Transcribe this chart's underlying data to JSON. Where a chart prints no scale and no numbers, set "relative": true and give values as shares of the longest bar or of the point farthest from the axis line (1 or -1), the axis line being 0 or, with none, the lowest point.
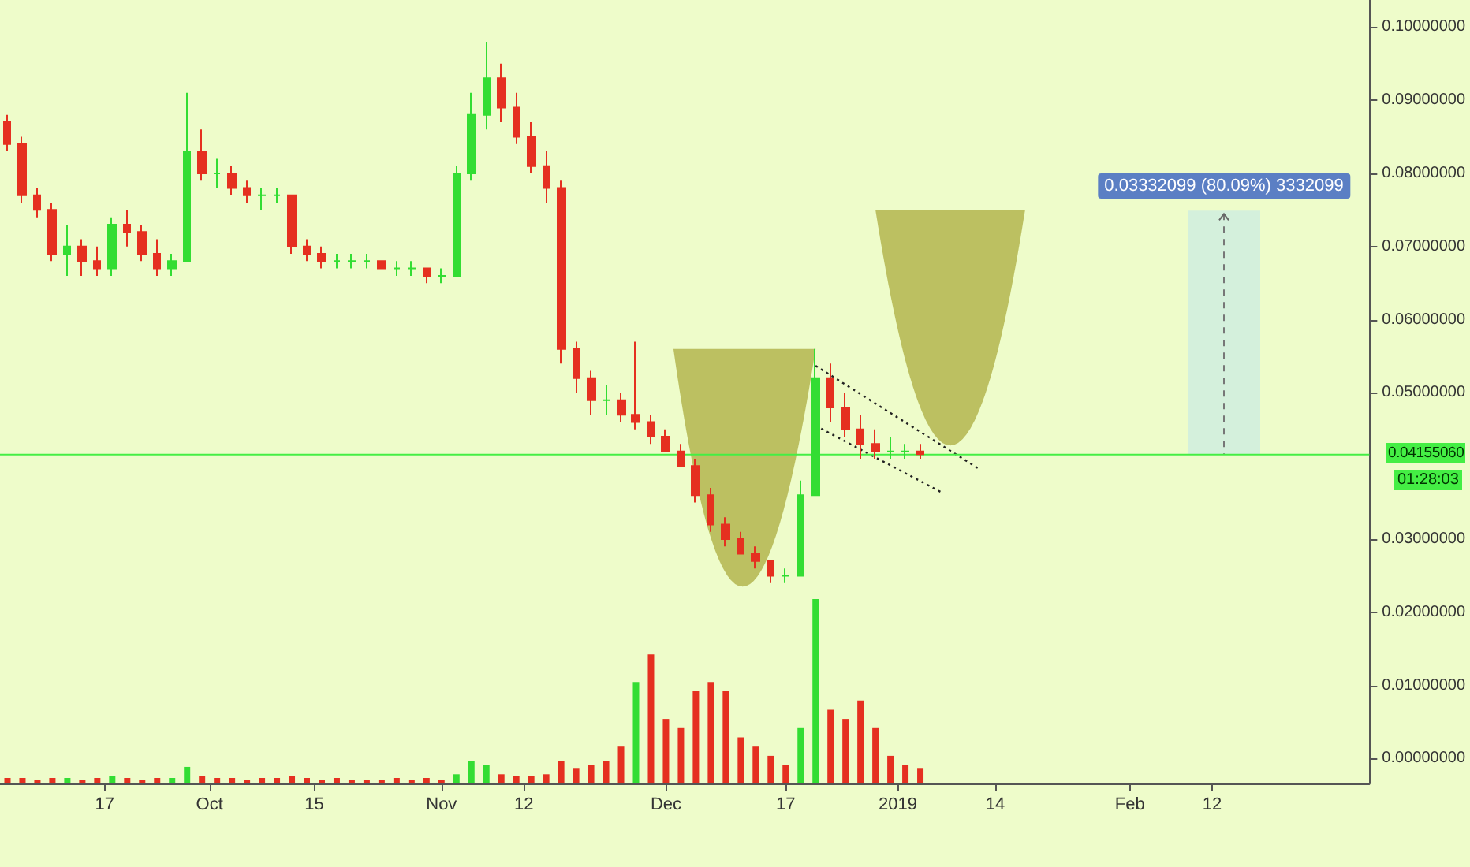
{
  "chart_data": [
    {
      "type": "candlestick",
      "x": [
        "2018-09-04",
        "2018-09-06",
        "2018-09-08",
        "2018-09-10",
        "2018-09-12",
        "2018-09-14",
        "2018-09-16",
        "2018-09-18",
        "2018-09-20",
        "2018-09-22",
        "2018-09-24",
        "2018-09-26",
        "2018-09-28",
        "2018-09-30",
        "2018-10-02",
        "2018-10-04",
        "2018-10-06",
        "2018-10-08",
        "2018-10-10",
        "2018-10-12",
        "2018-10-14",
        "2018-10-16",
        "2018-10-18",
        "2018-10-20",
        "2018-10-22",
        "2018-10-24",
        "2018-10-26",
        "2018-10-28",
        "2018-10-30",
        "2018-11-01",
        "2018-11-03",
        "2018-11-05",
        "2018-11-07",
        "2018-11-09",
        "2018-11-11",
        "2018-11-13",
        "2018-11-15",
        "2018-11-17",
        "2018-11-19",
        "2018-11-21",
        "2018-11-23",
        "2018-11-25",
        "2018-11-27",
        "2018-11-29",
        "2018-12-01",
        "2018-12-03",
        "2018-12-05",
        "2018-12-07",
        "2018-12-09",
        "2018-12-11",
        "2018-12-13",
        "2018-12-15",
        "2018-12-17",
        "2018-12-19",
        "2018-12-21",
        "2018-12-23",
        "2018-12-25",
        "2018-12-27",
        "2018-12-29",
        "2018-12-31",
        "2019-01-02",
        "2019-01-04"
      ],
      "ohlc": [
        [
          0.087,
          0.088,
          0.083,
          0.084
        ],
        [
          0.084,
          0.085,
          0.076,
          0.077
        ],
        [
          0.077,
          0.078,
          0.074,
          0.075
        ],
        [
          0.075,
          0.076,
          0.068,
          0.069
        ],
        [
          0.069,
          0.073,
          0.066,
          0.07
        ],
        [
          0.07,
          0.071,
          0.066,
          0.068
        ],
        [
          0.068,
          0.07,
          0.066,
          0.067
        ],
        [
          0.067,
          0.074,
          0.066,
          0.073
        ],
        [
          0.073,
          0.075,
          0.07,
          0.072
        ],
        [
          0.072,
          0.073,
          0.068,
          0.069
        ],
        [
          0.069,
          0.071,
          0.066,
          0.067
        ],
        [
          0.067,
          0.069,
          0.066,
          0.068
        ],
        [
          0.068,
          0.091,
          0.068,
          0.083
        ],
        [
          0.083,
          0.086,
          0.079,
          0.08
        ],
        [
          0.08,
          0.082,
          0.078,
          0.08
        ],
        [
          0.08,
          0.081,
          0.077,
          0.078
        ],
        [
          0.078,
          0.079,
          0.076,
          0.077
        ],
        [
          0.077,
          0.078,
          0.075,
          0.077
        ],
        [
          0.077,
          0.078,
          0.076,
          0.077
        ],
        [
          0.077,
          0.077,
          0.069,
          0.07
        ],
        [
          0.07,
          0.071,
          0.068,
          0.069
        ],
        [
          0.069,
          0.07,
          0.067,
          0.068
        ],
        [
          0.068,
          0.069,
          0.067,
          0.068
        ],
        [
          0.068,
          0.069,
          0.067,
          0.068
        ],
        [
          0.068,
          0.069,
          0.067,
          0.068
        ],
        [
          0.068,
          0.068,
          0.067,
          0.067
        ],
        [
          0.067,
          0.068,
          0.066,
          0.067
        ],
        [
          0.067,
          0.068,
          0.066,
          0.067
        ],
        [
          0.067,
          0.067,
          0.065,
          0.066
        ],
        [
          0.066,
          0.067,
          0.065,
          0.066
        ],
        [
          0.066,
          0.081,
          0.066,
          0.08
        ],
        [
          0.08,
          0.091,
          0.079,
          0.088
        ],
        [
          0.088,
          0.098,
          0.086,
          0.093
        ],
        [
          0.093,
          0.095,
          0.087,
          0.089
        ],
        [
          0.089,
          0.091,
          0.084,
          0.085
        ],
        [
          0.085,
          0.087,
          0.08,
          0.081
        ],
        [
          0.081,
          0.083,
          0.076,
          0.078
        ],
        [
          0.078,
          0.079,
          0.054,
          0.056
        ],
        [
          0.056,
          0.057,
          0.05,
          0.052
        ],
        [
          0.052,
          0.053,
          0.047,
          0.049
        ],
        [
          0.049,
          0.051,
          0.047,
          0.049
        ],
        [
          0.049,
          0.05,
          0.046,
          0.047
        ],
        [
          0.047,
          0.057,
          0.045,
          0.046
        ],
        [
          0.046,
          0.047,
          0.043,
          0.044
        ],
        [
          0.044,
          0.045,
          0.042,
          0.042
        ],
        [
          0.042,
          0.043,
          0.04,
          0.04
        ],
        [
          0.04,
          0.041,
          0.035,
          0.036
        ],
        [
          0.036,
          0.037,
          0.031,
          0.032
        ],
        [
          0.032,
          0.033,
          0.029,
          0.03
        ],
        [
          0.03,
          0.031,
          0.028,
          0.028
        ],
        [
          0.028,
          0.029,
          0.026,
          0.027
        ],
        [
          0.027,
          0.027,
          0.024,
          0.025
        ],
        [
          0.025,
          0.026,
          0.024,
          0.025
        ],
        [
          0.025,
          0.038,
          0.025,
          0.036
        ],
        [
          0.036,
          0.056,
          0.036,
          0.052
        ],
        [
          0.052,
          0.054,
          0.046,
          0.048
        ],
        [
          0.048,
          0.05,
          0.044,
          0.045
        ],
        [
          0.045,
          0.047,
          0.041,
          0.043
        ],
        [
          0.043,
          0.045,
          0.041,
          0.042
        ],
        [
          0.042,
          0.044,
          0.041,
          0.042
        ],
        [
          0.042,
          0.043,
          0.041,
          0.042
        ],
        [
          0.042,
          0.043,
          0.041,
          0.0416
        ]
      ],
      "xlim": [
        "2018-09-03",
        "2019-03-05"
      ],
      "xticks": [
        {
          "value": "2018-09-17",
          "label": "17"
        },
        {
          "value": "2018-10-01",
          "label": "Oct"
        },
        {
          "value": "2018-10-15",
          "label": "15"
        },
        {
          "value": "2018-11-01",
          "label": "Nov"
        },
        {
          "value": "2018-11-12",
          "label": "12"
        },
        {
          "value": "2018-12-01",
          "label": "Dec"
        },
        {
          "value": "2018-12-17",
          "label": "17"
        },
        {
          "value": "2019-01-01",
          "label": "2019"
        },
        {
          "value": "2019-01-14",
          "label": "14"
        },
        {
          "value": "2019-02-01",
          "label": "Feb"
        },
        {
          "value": "2019-02-12",
          "label": "12"
        }
      ],
      "ylim": [
        -0.0034,
        0.1037
      ],
      "yticks": [
        {
          "value": 0,
          "label": "0.00000000"
        },
        {
          "value": 0.01,
          "label": "0.01000000"
        },
        {
          "value": 0.02,
          "label": "0.02000000"
        },
        {
          "value": 0.03,
          "label": "0.03000000"
        },
        {
          "value": 0.05,
          "label": "0.05000000"
        },
        {
          "value": 0.06,
          "label": "0.06000000"
        },
        {
          "value": 0.07,
          "label": "0.07000000"
        },
        {
          "value": 0.08,
          "label": "0.08000000"
        },
        {
          "value": 0.09,
          "label": "0.09000000"
        },
        {
          "value": 0.1,
          "label": "0.10000000"
        }
      ],
      "ref_lines": [
        {
          "axis": "y",
          "value": 0.0415506,
          "label": "0.04155060",
          "color": "#44ee44"
        }
      ],
      "bands": [
        {
          "axis": "y",
          "from": 0.0415506,
          "to": 0.0749,
          "label": "0.03332099 (80.09%) 3332099",
          "color": "#d4f0dc"
        }
      ],
      "annotations": [
        "01:28:03"
      ],
      "series": [
        {
          "type": "line",
          "x": [
            "2018-12-21",
            "2019-01-12"
          ],
          "values": [
            0.0537,
            0.0395
          ],
          "color": "#222222",
          "line_style": "dotted"
        },
        {
          "type": "line",
          "x": [
            "2018-12-21",
            "2019-01-07"
          ],
          "values": [
            0.0455,
            0.0363
          ],
          "color": "#222222",
          "line_style": "dotted"
        }
      ],
      "grid": false
    },
    {
      "type": "bar",
      "relative": true,
      "categories": [
        null,
        null,
        null,
        null,
        null,
        null,
        null,
        null,
        null,
        null,
        null,
        null,
        null,
        null,
        null,
        null,
        null,
        null,
        null,
        null,
        null,
        null,
        null,
        null,
        null,
        null,
        null,
        null,
        null,
        null,
        null,
        null,
        null,
        null,
        null,
        null,
        null,
        null,
        null,
        null,
        null,
        null,
        null,
        null,
        null,
        null,
        null,
        null,
        null,
        null,
        null,
        null,
        null,
        null,
        null,
        null,
        null,
        null,
        null,
        null,
        null,
        null
      ],
      "values": [
        0.03,
        0.03,
        0.02,
        0.03,
        0.03,
        0.02,
        0.03,
        0.04,
        0.03,
        0.02,
        0.03,
        0.03,
        0.09,
        0.04,
        0.03,
        0.03,
        0.02,
        0.03,
        0.03,
        0.04,
        0.03,
        0.02,
        0.03,
        0.02,
        0.02,
        0.02,
        0.03,
        0.02,
        0.03,
        0.02,
        0.05,
        0.12,
        0.1,
        0.05,
        0.04,
        0.04,
        0.05,
        0.12,
        0.08,
        0.1,
        0.12,
        0.2,
        0.55,
        0.7,
        0.35,
        0.3,
        0.5,
        0.55,
        0.5,
        0.25,
        0.2,
        0.15,
        0.1,
        0.3,
        1.0,
        0.4,
        0.35,
        0.45,
        0.3,
        0.15,
        0.1,
        0.08
      ],
      "colors": [
        "#e53020",
        "#e53020",
        "#e53020",
        "#e53020",
        "#33dd33",
        "#e53020",
        "#e53020",
        "#33dd33",
        "#e53020",
        "#e53020",
        "#e53020",
        "#33dd33",
        "#33dd33",
        "#e53020",
        "#e53020",
        "#e53020",
        "#e53020",
        "#e53020",
        "#e53020",
        "#e53020",
        "#e53020",
        "#e53020",
        "#e53020",
        "#e53020",
        "#e53020",
        "#e53020",
        "#e53020",
        "#e53020",
        "#e53020",
        "#e53020",
        "#33dd33",
        "#33dd33",
        "#33dd33",
        "#e53020",
        "#e53020",
        "#e53020",
        "#e53020",
        "#e53020",
        "#e53020",
        "#e53020",
        "#e53020",
        "#e53020",
        "#33dd33",
        "#e53020",
        "#e53020",
        "#e53020",
        "#e53020",
        "#e53020",
        "#e53020",
        "#e53020",
        "#e53020",
        "#e53020",
        "#e53020",
        "#33dd33",
        "#33dd33",
        "#e53020",
        "#e53020",
        "#e53020",
        "#e53020",
        "#e53020",
        "#e53020",
        "#e53020"
      ]
    }
  ]
}
